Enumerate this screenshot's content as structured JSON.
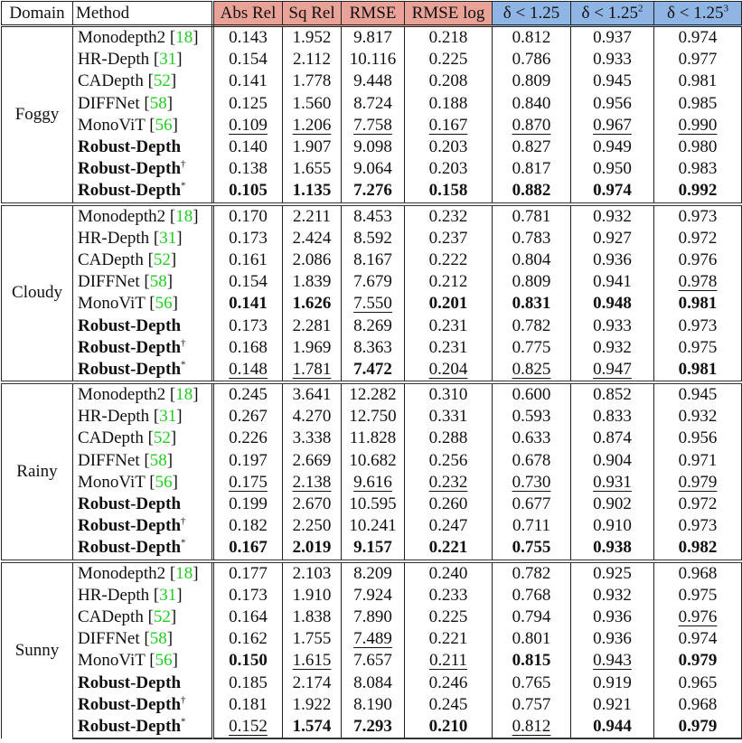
{
  "headers": {
    "domain": "Domain",
    "method": "Method",
    "metrics": [
      {
        "label": "Abs Rel",
        "group": "lower"
      },
      {
        "label": "Sq Rel",
        "group": "lower"
      },
      {
        "label": "RMSE",
        "group": "lower"
      },
      {
        "label": "RMSE log",
        "group": "lower"
      },
      {
        "label": "δ < 1.25",
        "sup": "",
        "group": "higher"
      },
      {
        "label": "δ < 1.25",
        "sup": "2",
        "group": "higher"
      },
      {
        "label": "δ < 1.25",
        "sup": "3",
        "group": "higher"
      }
    ]
  },
  "colors": {
    "lower_header": "#e8a298",
    "higher_header": "#8fb5e4",
    "citation": "#22cc22"
  },
  "methods": [
    {
      "name": "Monodepth2",
      "cite": "18",
      "bold": false,
      "sup": ""
    },
    {
      "name": "HR-Depth",
      "cite": "31",
      "bold": false,
      "sup": ""
    },
    {
      "name": "CADepth",
      "cite": "52",
      "bold": false,
      "sup": ""
    },
    {
      "name": "DIFFNet",
      "cite": "58",
      "bold": false,
      "sup": ""
    },
    {
      "name": "MonoViT",
      "cite": "56",
      "bold": false,
      "sup": ""
    },
    {
      "name": "Robust-Depth",
      "cite": "",
      "bold": true,
      "sup": ""
    },
    {
      "name": "Robust-Depth",
      "cite": "",
      "bold": true,
      "sup": "†"
    },
    {
      "name": "Robust-Depth",
      "cite": "",
      "bold": true,
      "sup": "*"
    }
  ],
  "sections": [
    {
      "domain": "Foggy",
      "rows": [
        {
          "values": [
            "0.143",
            "1.952",
            "9.817",
            "0.218",
            "0.812",
            "0.937",
            "0.974"
          ],
          "fmt": [
            "",
            "",
            "",
            "",
            "",
            "",
            ""
          ]
        },
        {
          "values": [
            "0.154",
            "2.112",
            "10.116",
            "0.225",
            "0.786",
            "0.933",
            "0.977"
          ],
          "fmt": [
            "",
            "",
            "",
            "",
            "",
            "",
            ""
          ]
        },
        {
          "values": [
            "0.141",
            "1.778",
            "9.448",
            "0.208",
            "0.809",
            "0.945",
            "0.981"
          ],
          "fmt": [
            "",
            "",
            "",
            "",
            "",
            "",
            ""
          ]
        },
        {
          "values": [
            "0.125",
            "1.560",
            "8.724",
            "0.188",
            "0.840",
            "0.956",
            "0.985"
          ],
          "fmt": [
            "",
            "",
            "",
            "",
            "",
            "",
            ""
          ]
        },
        {
          "values": [
            "0.109",
            "1.206",
            "7.758",
            "0.167",
            "0.870",
            "0.967",
            "0.990"
          ],
          "fmt": [
            "u",
            "u",
            "u",
            "u",
            "u",
            "u",
            "u"
          ]
        },
        {
          "values": [
            "0.140",
            "1.907",
            "9.098",
            "0.203",
            "0.827",
            "0.949",
            "0.980"
          ],
          "fmt": [
            "",
            "",
            "",
            "",
            "",
            "",
            ""
          ]
        },
        {
          "values": [
            "0.138",
            "1.655",
            "9.064",
            "0.203",
            "0.817",
            "0.950",
            "0.983"
          ],
          "fmt": [
            "",
            "",
            "",
            "",
            "",
            "",
            ""
          ]
        },
        {
          "values": [
            "0.105",
            "1.135",
            "7.276",
            "0.158",
            "0.882",
            "0.974",
            "0.992"
          ],
          "fmt": [
            "b",
            "b",
            "b",
            "b",
            "b",
            "b",
            "b"
          ]
        }
      ]
    },
    {
      "domain": "Cloudy",
      "rows": [
        {
          "values": [
            "0.170",
            "2.211",
            "8.453",
            "0.232",
            "0.781",
            "0.932",
            "0.973"
          ],
          "fmt": [
            "",
            "",
            "",
            "",
            "",
            "",
            ""
          ]
        },
        {
          "values": [
            "0.173",
            "2.424",
            "8.592",
            "0.237",
            "0.783",
            "0.927",
            "0.972"
          ],
          "fmt": [
            "",
            "",
            "",
            "",
            "",
            "",
            ""
          ]
        },
        {
          "values": [
            "0.161",
            "2.086",
            "8.167",
            "0.222",
            "0.804",
            "0.936",
            "0.976"
          ],
          "fmt": [
            "",
            "",
            "",
            "",
            "",
            "",
            ""
          ]
        },
        {
          "values": [
            "0.154",
            "1.839",
            "7.679",
            "0.212",
            "0.809",
            "0.941",
            "0.978"
          ],
          "fmt": [
            "",
            "",
            "",
            "",
            "",
            "",
            "u"
          ]
        },
        {
          "values": [
            "0.141",
            "1.626",
            "7.550",
            "0.201",
            "0.831",
            "0.948",
            "0.981"
          ],
          "fmt": [
            "b",
            "b",
            "u",
            "b",
            "b",
            "b",
            "b"
          ]
        },
        {
          "values": [
            "0.173",
            "2.281",
            "8.269",
            "0.231",
            "0.782",
            "0.933",
            "0.973"
          ],
          "fmt": [
            "",
            "",
            "",
            "",
            "",
            "",
            ""
          ]
        },
        {
          "values": [
            "0.168",
            "1.969",
            "8.363",
            "0.231",
            "0.775",
            "0.932",
            "0.975"
          ],
          "fmt": [
            "",
            "",
            "",
            "",
            "",
            "",
            ""
          ]
        },
        {
          "values": [
            "0.148",
            "1.781",
            "7.472",
            "0.204",
            "0.825",
            "0.947",
            "0.981"
          ],
          "fmt": [
            "u",
            "u",
            "b",
            "u",
            "u",
            "u",
            "b"
          ]
        }
      ]
    },
    {
      "domain": "Rainy",
      "rows": [
        {
          "values": [
            "0.245",
            "3.641",
            "12.282",
            "0.310",
            "0.600",
            "0.852",
            "0.945"
          ],
          "fmt": [
            "",
            "",
            "",
            "",
            "",
            "",
            ""
          ]
        },
        {
          "values": [
            "0.267",
            "4.270",
            "12.750",
            "0.331",
            "0.593",
            "0.833",
            "0.932"
          ],
          "fmt": [
            "",
            "",
            "",
            "",
            "",
            "",
            ""
          ]
        },
        {
          "values": [
            "0.226",
            "3.338",
            "11.828",
            "0.288",
            "0.633",
            "0.874",
            "0.956"
          ],
          "fmt": [
            "",
            "",
            "",
            "",
            "",
            "",
            ""
          ]
        },
        {
          "values": [
            "0.197",
            "2.669",
            "10.682",
            "0.256",
            "0.678",
            "0.904",
            "0.971"
          ],
          "fmt": [
            "",
            "",
            "",
            "",
            "",
            "",
            ""
          ]
        },
        {
          "values": [
            "0.175",
            "2.138",
            "9.616",
            "0.232",
            "0.730",
            "0.931",
            "0.979"
          ],
          "fmt": [
            "u",
            "u",
            "u",
            "u",
            "u",
            "u",
            "u"
          ]
        },
        {
          "values": [
            "0.199",
            "2.670",
            "10.595",
            "0.260",
            "0.677",
            "0.902",
            "0.972"
          ],
          "fmt": [
            "",
            "",
            "",
            "",
            "",
            "",
            ""
          ]
        },
        {
          "values": [
            "0.182",
            "2.250",
            "10.241",
            "0.247",
            "0.711",
            "0.910",
            "0.973"
          ],
          "fmt": [
            "",
            "",
            "",
            "",
            "",
            "",
            ""
          ]
        },
        {
          "values": [
            "0.167",
            "2.019",
            "9.157",
            "0.221",
            "0.755",
            "0.938",
            "0.982"
          ],
          "fmt": [
            "b",
            "b",
            "b",
            "b",
            "b",
            "b",
            "b"
          ]
        }
      ]
    },
    {
      "domain": "Sunny",
      "rows": [
        {
          "values": [
            "0.177",
            "2.103",
            "8.209",
            "0.240",
            "0.782",
            "0.925",
            "0.968"
          ],
          "fmt": [
            "",
            "",
            "",
            "",
            "",
            "",
            ""
          ]
        },
        {
          "values": [
            "0.173",
            "1.910",
            "7.924",
            "0.233",
            "0.768",
            "0.932",
            "0.975"
          ],
          "fmt": [
            "",
            "",
            "",
            "",
            "",
            "",
            ""
          ]
        },
        {
          "values": [
            "0.164",
            "1.838",
            "7.890",
            "0.225",
            "0.794",
            "0.936",
            "0.976"
          ],
          "fmt": [
            "",
            "",
            "",
            "",
            "",
            "",
            "u"
          ]
        },
        {
          "values": [
            "0.162",
            "1.755",
            "7.489",
            "0.221",
            "0.801",
            "0.936",
            "0.974"
          ],
          "fmt": [
            "",
            "",
            "u",
            "",
            "",
            "",
            ""
          ]
        },
        {
          "values": [
            "0.150",
            "1.615",
            "7.657",
            "0.211",
            "0.815",
            "0.943",
            "0.979"
          ],
          "fmt": [
            "b",
            "u",
            "",
            "u",
            "b",
            "u",
            "b"
          ]
        },
        {
          "values": [
            "0.185",
            "2.174",
            "8.084",
            "0.246",
            "0.765",
            "0.919",
            "0.965"
          ],
          "fmt": [
            "",
            "",
            "",
            "",
            "",
            "",
            ""
          ]
        },
        {
          "values": [
            "0.181",
            "1.922",
            "8.190",
            "0.245",
            "0.757",
            "0.921",
            "0.968"
          ],
          "fmt": [
            "",
            "",
            "",
            "",
            "",
            "",
            ""
          ]
        },
        {
          "values": [
            "0.152",
            "1.574",
            "7.293",
            "0.210",
            "0.812",
            "0.944",
            "0.979"
          ],
          "fmt": [
            "u",
            "b",
            "b",
            "b",
            "u",
            "b",
            "b"
          ]
        }
      ]
    }
  ]
}
